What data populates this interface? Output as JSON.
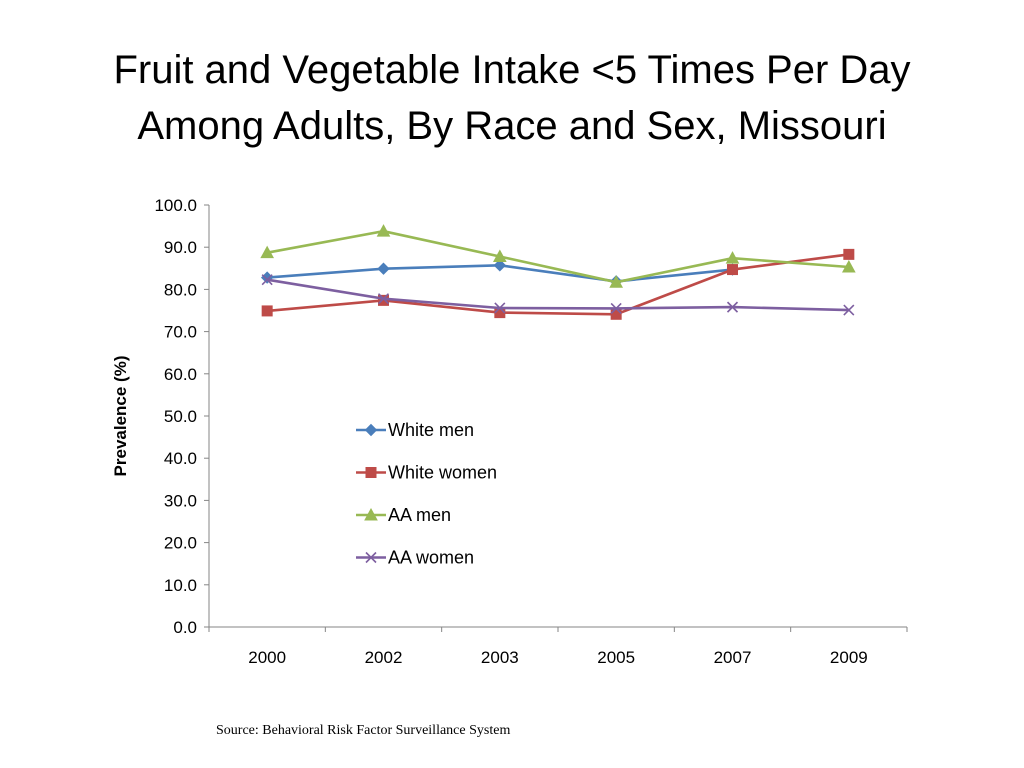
{
  "title_lines": [
    "Fruit and Vegetable Intake <5 Times Per Day",
    "Among Adults, By Race and Sex, Missouri"
  ],
  "source": "Source: Behavioral Risk Factor Surveillance System",
  "chart_data": {
    "type": "line",
    "categories": [
      "2000",
      "2002",
      "2003",
      "2005",
      "2007",
      "2009"
    ],
    "ylabel": "Prevalence (%)",
    "xlabel": "",
    "ylim": [
      0,
      100
    ],
    "ytick_labels": [
      "0.0",
      "10.0",
      "20.0",
      "30.0",
      "40.0",
      "50.0",
      "60.0",
      "70.0",
      "80.0",
      "90.0",
      "100.0"
    ],
    "grid": false,
    "legend_position": "center-left",
    "series": [
      {
        "name": "White men",
        "color": "#4a7ebb",
        "marker": "diamond",
        "values": [
          82.8,
          84.9,
          85.7,
          81.9,
          84.7,
          null
        ]
      },
      {
        "name": "White women",
        "color": "#be4b48",
        "marker": "square",
        "values": [
          74.9,
          77.4,
          74.5,
          74.1,
          84.7,
          88.3
        ]
      },
      {
        "name": "AA men",
        "color": "#98b954",
        "marker": "triangle",
        "values": [
          88.7,
          93.8,
          87.8,
          81.7,
          87.4,
          85.3
        ]
      },
      {
        "name": "AA women",
        "color": "#7d5fa0",
        "marker": "x",
        "values": [
          82.3,
          77.8,
          75.6,
          75.5,
          75.8,
          75.1
        ]
      }
    ]
  }
}
